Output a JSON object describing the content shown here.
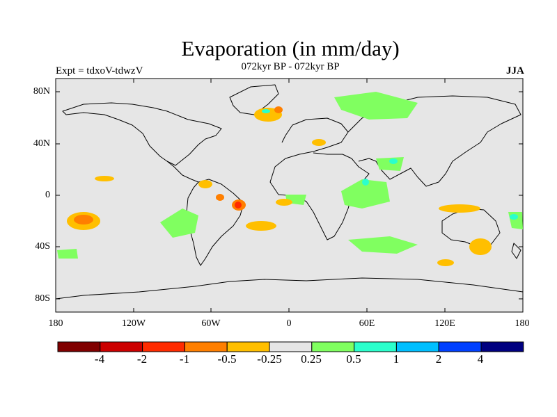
{
  "title": "Evaporation (in mm/day)",
  "subtitle": "072kyr BP - 072kyr BP",
  "left_label": "Expt = tdxoV-tdwzV",
  "right_label": "JJA",
  "axes": {
    "y_ticks": [
      "80N",
      "40N",
      "0",
      "40S",
      "80S"
    ],
    "x_ticks": [
      "180",
      "120W",
      "60W",
      "0",
      "60E",
      "120E",
      "180"
    ]
  },
  "colors": {
    "background": "#e6e6e6",
    "coastline": "#000000"
  },
  "colorbar": {
    "colors": [
      "#800000",
      "#cc0000",
      "#ff2b00",
      "#ff7f00",
      "#ffbf00",
      "#e6e6e6",
      "#80ff60",
      "#2bffcc",
      "#00bfff",
      "#0040ff",
      "#000080"
    ],
    "labels": [
      "-4",
      "-2",
      "-1",
      "-0.5",
      "-0.25",
      "0.25",
      "0.5",
      "1",
      "2",
      "4"
    ]
  }
}
